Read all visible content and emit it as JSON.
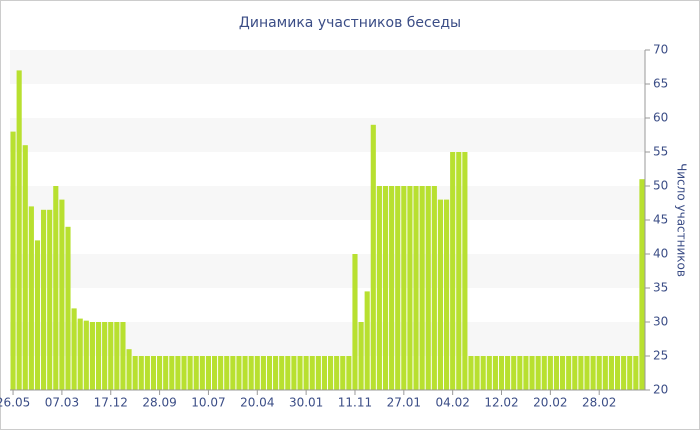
{
  "chart_data": {
    "type": "bar",
    "title": "Динамика участников беседы",
    "y_label": "Число участников",
    "categories": [
      "26.05",
      null,
      null,
      null,
      null,
      null,
      null,
      null,
      "07.03",
      null,
      null,
      null,
      null,
      null,
      null,
      null,
      "17.12",
      null,
      null,
      null,
      null,
      null,
      null,
      null,
      "28.09",
      null,
      null,
      null,
      null,
      null,
      null,
      null,
      "10.07",
      null,
      null,
      null,
      null,
      null,
      null,
      null,
      "20.04",
      null,
      null,
      null,
      null,
      null,
      null,
      null,
      "30.01",
      null,
      null,
      null,
      null,
      null,
      null,
      null,
      "11.11",
      null,
      null,
      null,
      null,
      null,
      null,
      null,
      "27.01",
      null,
      null,
      null,
      null,
      null,
      null,
      null,
      "04.02",
      null,
      null,
      null,
      null,
      null,
      null,
      null,
      "12.02",
      null,
      null,
      null,
      null,
      null,
      null,
      null,
      "20.02",
      null,
      null,
      null,
      null,
      null,
      null,
      null,
      "28.02",
      null,
      null,
      null,
      null,
      null,
      null,
      null
    ],
    "values": [
      58,
      67,
      56,
      47,
      42,
      46.5,
      46.5,
      50,
      48,
      44,
      32,
      30.5,
      30.2,
      30,
      30,
      30,
      30,
      30,
      30,
      26,
      25,
      25,
      25,
      25,
      25,
      25,
      25,
      25,
      25,
      25,
      25,
      25,
      25,
      25,
      25,
      25,
      25,
      25,
      25,
      25,
      25,
      25,
      25,
      25,
      25,
      25,
      25,
      25,
      25,
      25,
      25,
      25,
      25,
      25,
      25,
      25,
      40,
      30,
      34.5,
      59,
      50,
      50,
      50,
      50,
      50,
      50,
      50,
      50,
      50,
      50,
      48,
      48,
      55,
      55,
      55,
      25,
      25,
      25,
      25,
      25,
      25,
      25,
      25,
      25,
      25,
      25,
      25,
      25,
      25,
      25,
      25,
      25,
      25,
      25,
      25,
      25,
      25,
      25,
      25,
      25,
      25,
      25,
      25,
      51
    ],
    "color": "#b8e030",
    "ylim": [
      20,
      70
    ],
    "yticks": [
      20,
      25,
      30,
      35,
      40,
      45,
      50,
      55,
      60,
      65,
      70
    ],
    "grid": true
  }
}
